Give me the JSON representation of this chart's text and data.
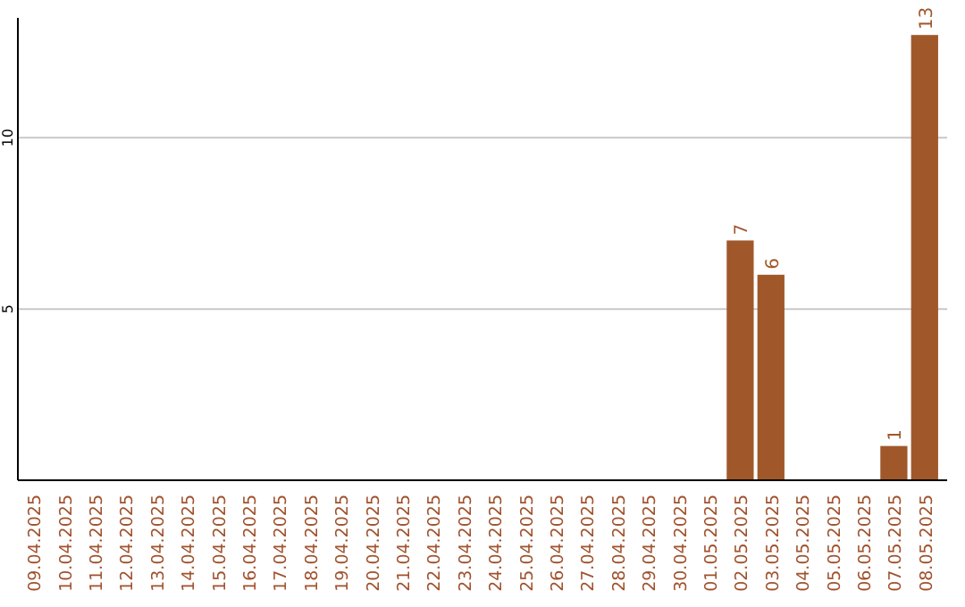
{
  "chart_data": {
    "type": "bar",
    "categories": [
      "09.04.2025",
      "10.04.2025",
      "11.04.2025",
      "12.04.2025",
      "13.04.2025",
      "14.04.2025",
      "15.04.2025",
      "16.04.2025",
      "17.04.2025",
      "18.04.2025",
      "19.04.2025",
      "20.04.2025",
      "21.04.2025",
      "22.04.2025",
      "23.04.2025",
      "24.04.2025",
      "25.04.2025",
      "26.04.2025",
      "27.04.2025",
      "28.04.2025",
      "29.04.2025",
      "30.04.2025",
      "01.05.2025",
      "02.05.2025",
      "03.05.2025",
      "04.05.2025",
      "05.05.2025",
      "06.05.2025",
      "07.05.2025",
      "08.05.2025"
    ],
    "values": [
      0,
      0,
      0,
      0,
      0,
      0,
      0,
      0,
      0,
      0,
      0,
      0,
      0,
      0,
      0,
      0,
      0,
      0,
      0,
      0,
      0,
      0,
      0,
      7,
      6,
      0,
      0,
      0,
      1,
      13
    ],
    "value_labels": [
      null,
      null,
      null,
      null,
      null,
      null,
      null,
      null,
      null,
      null,
      null,
      null,
      null,
      null,
      null,
      null,
      null,
      null,
      null,
      null,
      null,
      null,
      null,
      "7",
      "6",
      null,
      null,
      null,
      "1",
      "13"
    ],
    "color": "#a0582a",
    "ylim": [
      0,
      13.5
    ],
    "yticks": [
      5,
      10
    ],
    "grid": "y"
  }
}
